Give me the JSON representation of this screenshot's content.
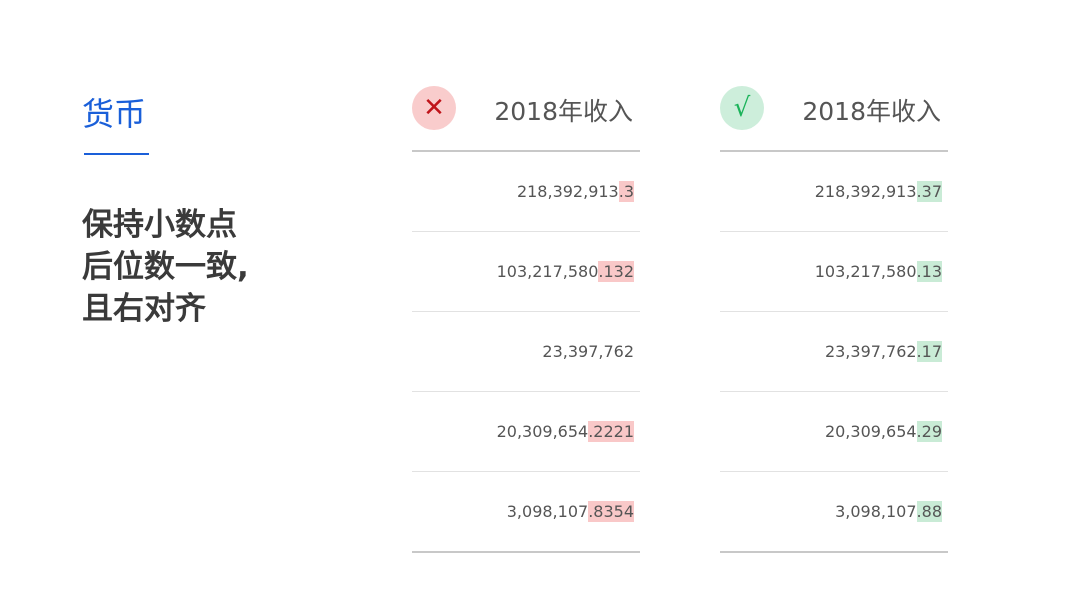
{
  "sidebar": {
    "title": "货币",
    "description_lines": [
      "保持小数点",
      "后位数一致,",
      "且右对齐"
    ]
  },
  "colors": {
    "accent": "#1a5fd9",
    "bad_highlight": "#f9c8c8",
    "bad_icon": "#c0141a",
    "bad_badge": "#f9cccc",
    "good_highlight": "#c9ebd6",
    "good_icon": "#1bb35a",
    "good_badge": "#cdeedb"
  },
  "tables": [
    {
      "status": "wrong",
      "icon": "cross-icon",
      "icon_glyph": "✕",
      "header": "2018年收入",
      "rows": [
        {
          "int": "218,392,913",
          "dec": ".3"
        },
        {
          "int": "103,217,580",
          "dec": ".132"
        },
        {
          "int": "23,397,762",
          "dec": ""
        },
        {
          "int": "20,309,654",
          "dec": ".2221"
        },
        {
          "int": "3,098,107",
          "dec": ".8354"
        }
      ]
    },
    {
      "status": "correct",
      "icon": "check-icon",
      "icon_glyph": "√",
      "header": "2018年收入",
      "rows": [
        {
          "int": "218,392,913",
          "dec": ".37"
        },
        {
          "int": "103,217,580",
          "dec": ".13"
        },
        {
          "int": "23,397,762",
          "dec": ".17"
        },
        {
          "int": "20,309,654",
          "dec": ".29"
        },
        {
          "int": "3,098,107",
          "dec": ".88"
        }
      ]
    }
  ]
}
